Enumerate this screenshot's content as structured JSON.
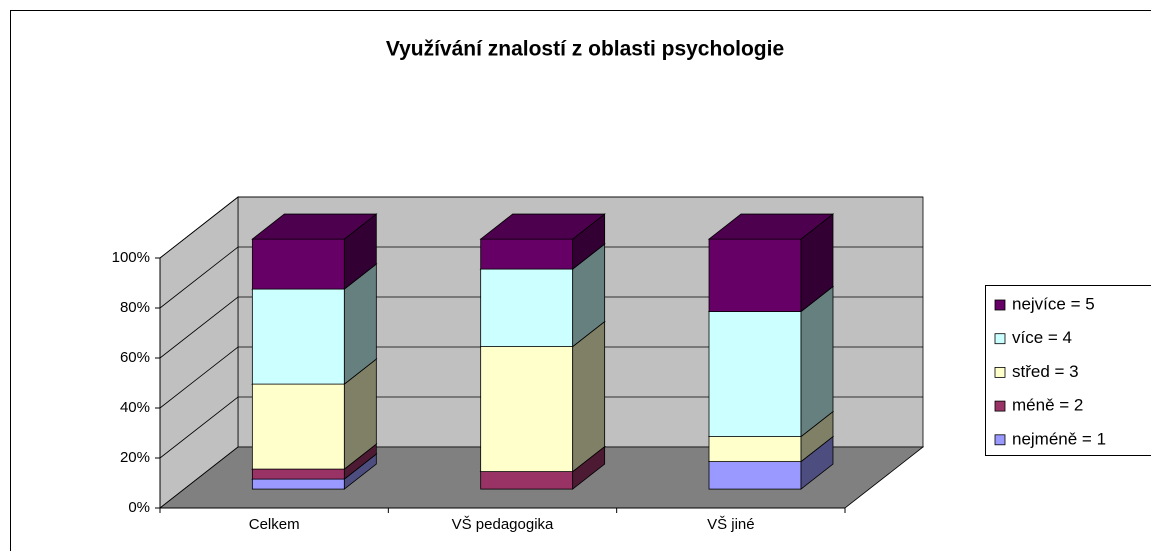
{
  "chart_data": {
    "type": "bar3d_stacked",
    "title": "Využívání znalostí z oblasti psychologie",
    "categories": [
      "Celkem",
      "VŠ pedagogika",
      "VŠ jiné"
    ],
    "series": [
      {
        "name": "nejméně = 1",
        "color": "#9999ff",
        "values": [
          4,
          0,
          11
        ]
      },
      {
        "name": "méně = 2",
        "color": "#993366",
        "values": [
          4,
          7,
          0
        ]
      },
      {
        "name": "střed = 3",
        "color": "#ffffcc",
        "values": [
          34,
          50,
          10
        ]
      },
      {
        "name": "více = 4",
        "color": "#ccffff",
        "values": [
          38,
          31,
          50
        ]
      },
      {
        "name": "nejvíce = 5",
        "color": "#660066",
        "values": [
          20,
          12,
          29
        ]
      }
    ],
    "ylim": [
      0,
      100
    ],
    "yticks": [
      {
        "value": 0,
        "label": "0%"
      },
      {
        "value": 20,
        "label": "20%"
      },
      {
        "value": 40,
        "label": "40%"
      },
      {
        "value": 60,
        "label": "60%"
      },
      {
        "value": 80,
        "label": "80%"
      },
      {
        "value": 100,
        "label": "100%"
      }
    ],
    "grid": true,
    "legend": "right"
  }
}
